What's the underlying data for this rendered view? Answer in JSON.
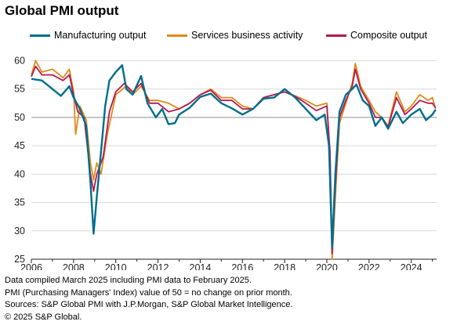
{
  "title": "Global PMI output",
  "notes": [
    "Data compiled March 2025 including PMI data to February 2025.",
    "PMI (Purchasing Managers' Index) value of 50 = no change on prior month.",
    "Sources: S&P Global PMI with J.P.Morgan, S&P Global Market Intelligence.",
    "© 2025 S&P Global."
  ],
  "chart_data": {
    "type": "line",
    "title": "Global PMI output",
    "xlabel": "",
    "ylabel": "",
    "xlim": [
      2006,
      2025.2
    ],
    "ylim": [
      25,
      62
    ],
    "x_ticks": [
      "2006",
      "2008",
      "2010",
      "2012",
      "2014",
      "2016",
      "2018",
      "2020",
      "2022",
      "2024"
    ],
    "y_ticks": [
      25,
      30,
      35,
      40,
      45,
      50,
      55,
      60
    ],
    "reference_line": 50,
    "grid": "horizontal",
    "legend_position": "top",
    "series": [
      {
        "name": "Manufacturing output",
        "color": "#006e8c",
        "points": [
          [
            2006.0,
            56.8
          ],
          [
            2006.5,
            56.5
          ],
          [
            2007.0,
            55.0
          ],
          [
            2007.4,
            53.8
          ],
          [
            2007.8,
            55.5
          ],
          [
            2008.0,
            53.5
          ],
          [
            2008.3,
            51.5
          ],
          [
            2008.6,
            48.5
          ],
          [
            2008.8,
            38.5
          ],
          [
            2008.95,
            29.5
          ],
          [
            2009.1,
            36
          ],
          [
            2009.3,
            44
          ],
          [
            2009.5,
            52
          ],
          [
            2009.7,
            56.5
          ],
          [
            2010.0,
            58
          ],
          [
            2010.3,
            59.2
          ],
          [
            2010.5,
            55
          ],
          [
            2010.8,
            54
          ],
          [
            2011.2,
            57.3
          ],
          [
            2011.5,
            52.5
          ],
          [
            2011.9,
            50
          ],
          [
            2012.2,
            51.5
          ],
          [
            2012.5,
            48.8
          ],
          [
            2012.8,
            49
          ],
          [
            2013.0,
            50.5
          ],
          [
            2013.5,
            51.7
          ],
          [
            2014.0,
            53.6
          ],
          [
            2014.5,
            54.2
          ],
          [
            2015.0,
            52.5
          ],
          [
            2015.5,
            51.6
          ],
          [
            2016.0,
            50.5
          ],
          [
            2016.5,
            51.5
          ],
          [
            2017.0,
            53.3
          ],
          [
            2017.5,
            53.5
          ],
          [
            2018.0,
            55
          ],
          [
            2018.5,
            53.5
          ],
          [
            2019.0,
            51.5
          ],
          [
            2019.5,
            49.5
          ],
          [
            2019.9,
            50.5
          ],
          [
            2020.1,
            45
          ],
          [
            2020.25,
            27
          ],
          [
            2020.4,
            40
          ],
          [
            2020.6,
            51
          ],
          [
            2020.9,
            54
          ],
          [
            2021.2,
            55
          ],
          [
            2021.4,
            55.8
          ],
          [
            2021.7,
            53
          ],
          [
            2022.0,
            52
          ],
          [
            2022.3,
            48.5
          ],
          [
            2022.6,
            50
          ],
          [
            2022.9,
            48
          ],
          [
            2023.3,
            51
          ],
          [
            2023.6,
            49
          ],
          [
            2024.0,
            50.5
          ],
          [
            2024.4,
            51.5
          ],
          [
            2024.7,
            49.5
          ],
          [
            2025.0,
            50.5
          ],
          [
            2025.15,
            51.4
          ]
        ]
      },
      {
        "name": "Services business activity",
        "color": "#e08a1e",
        "points": [
          [
            2006.0,
            57.5
          ],
          [
            2006.2,
            60
          ],
          [
            2006.5,
            58
          ],
          [
            2007.0,
            58.5
          ],
          [
            2007.5,
            57
          ],
          [
            2007.8,
            58.5
          ],
          [
            2008.0,
            54.5
          ],
          [
            2008.1,
            47
          ],
          [
            2008.3,
            52
          ],
          [
            2008.6,
            49.5
          ],
          [
            2008.8,
            42
          ],
          [
            2008.95,
            39
          ],
          [
            2009.1,
            42
          ],
          [
            2009.3,
            40
          ],
          [
            2009.6,
            47
          ],
          [
            2010.0,
            54
          ],
          [
            2010.5,
            55.5
          ],
          [
            2010.8,
            54
          ],
          [
            2011.2,
            55.5
          ],
          [
            2011.6,
            53
          ],
          [
            2012.0,
            53
          ],
          [
            2012.5,
            52.5
          ],
          [
            2013.0,
            51.5
          ],
          [
            2013.5,
            52.5
          ],
          [
            2014.0,
            54
          ],
          [
            2014.5,
            55
          ],
          [
            2015.0,
            53.5
          ],
          [
            2015.5,
            53.5
          ],
          [
            2016.0,
            52
          ],
          [
            2016.5,
            51.5
          ],
          [
            2017.0,
            53.5
          ],
          [
            2017.5,
            54
          ],
          [
            2018.0,
            54.5
          ],
          [
            2018.5,
            53.8
          ],
          [
            2019.0,
            53
          ],
          [
            2019.5,
            52
          ],
          [
            2020.0,
            52.5
          ],
          [
            2020.15,
            43
          ],
          [
            2020.25,
            25
          ],
          [
            2020.4,
            36
          ],
          [
            2020.6,
            49
          ],
          [
            2020.9,
            52.5
          ],
          [
            2021.2,
            56
          ],
          [
            2021.35,
            59.5
          ],
          [
            2021.6,
            55.5
          ],
          [
            2022.0,
            53
          ],
          [
            2022.3,
            51
          ],
          [
            2022.6,
            50
          ],
          [
            2022.9,
            48.5
          ],
          [
            2023.3,
            54.5
          ],
          [
            2023.7,
            51
          ],
          [
            2024.0,
            52
          ],
          [
            2024.4,
            54
          ],
          [
            2024.8,
            53
          ],
          [
            2025.0,
            53.5
          ],
          [
            2025.15,
            51.5
          ]
        ]
      },
      {
        "name": "Composite output",
        "color": "#b31b4f",
        "points": [
          [
            2006.0,
            57.2
          ],
          [
            2006.2,
            59
          ],
          [
            2006.5,
            57.5
          ],
          [
            2007.0,
            57.5
          ],
          [
            2007.5,
            56.5
          ],
          [
            2007.8,
            57.5
          ],
          [
            2008.0,
            54
          ],
          [
            2008.2,
            51
          ],
          [
            2008.5,
            50
          ],
          [
            2008.8,
            40
          ],
          [
            2008.95,
            37
          ],
          [
            2009.1,
            40
          ],
          [
            2009.4,
            43
          ],
          [
            2009.7,
            51
          ],
          [
            2010.0,
            54.5
          ],
          [
            2010.4,
            56
          ],
          [
            2010.8,
            54.5
          ],
          [
            2011.2,
            56
          ],
          [
            2011.6,
            52.5
          ],
          [
            2012.0,
            52.5
          ],
          [
            2012.5,
            51
          ],
          [
            2013.0,
            51.5
          ],
          [
            2013.5,
            52.5
          ],
          [
            2014.0,
            54
          ],
          [
            2014.5,
            54.8
          ],
          [
            2015.0,
            53
          ],
          [
            2015.5,
            53
          ],
          [
            2016.0,
            51.5
          ],
          [
            2016.5,
            51.5
          ],
          [
            2017.0,
            53.5
          ],
          [
            2017.5,
            54
          ],
          [
            2018.0,
            54.5
          ],
          [
            2018.5,
            53.7
          ],
          [
            2019.0,
            52.5
          ],
          [
            2019.5,
            51.2
          ],
          [
            2020.0,
            52
          ],
          [
            2020.15,
            44
          ],
          [
            2020.25,
            26
          ],
          [
            2020.4,
            38
          ],
          [
            2020.6,
            50
          ],
          [
            2020.9,
            53
          ],
          [
            2021.2,
            55.5
          ],
          [
            2021.35,
            58.5
          ],
          [
            2021.6,
            55
          ],
          [
            2022.0,
            52.5
          ],
          [
            2022.3,
            50
          ],
          [
            2022.6,
            50
          ],
          [
            2022.9,
            48.3
          ],
          [
            2023.3,
            53.5
          ],
          [
            2023.7,
            50.5
          ],
          [
            2024.0,
            51.5
          ],
          [
            2024.4,
            53
          ],
          [
            2024.8,
            52.5
          ],
          [
            2025.0,
            52.5
          ],
          [
            2025.15,
            51.7
          ]
        ]
      }
    ]
  }
}
